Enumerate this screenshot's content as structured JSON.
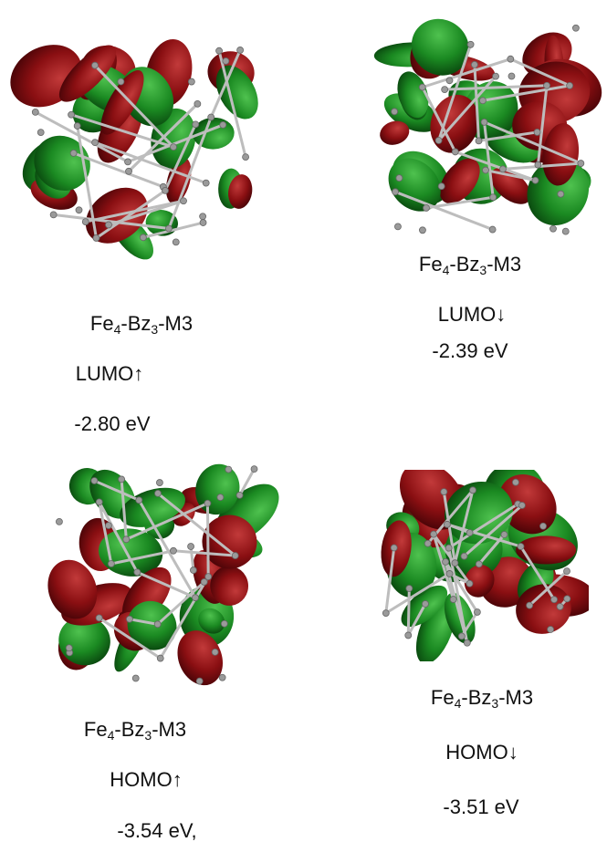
{
  "panels": [
    {
      "name": [
        "Fe",
        "4",
        "-Bz",
        "3",
        "-M3"
      ],
      "orbital": "LUMO↑",
      "energy": "-2.80 eV"
    },
    {
      "name": [
        "Fe",
        "4",
        "-Bz",
        "3",
        "-M3"
      ],
      "orbital": "LUMO↓",
      "energy": "-2.39 eV"
    },
    {
      "name": [
        "Fe",
        "4",
        "-Bz",
        "3",
        "-M3"
      ],
      "orbital": "HOMO↑",
      "energy": "-3.54 eV,"
    },
    {
      "name": [
        "Fe",
        "4",
        "-Bz",
        "3",
        "-M3"
      ],
      "orbital": "HOMO↓",
      "energy": "-3.51 eV"
    }
  ]
}
